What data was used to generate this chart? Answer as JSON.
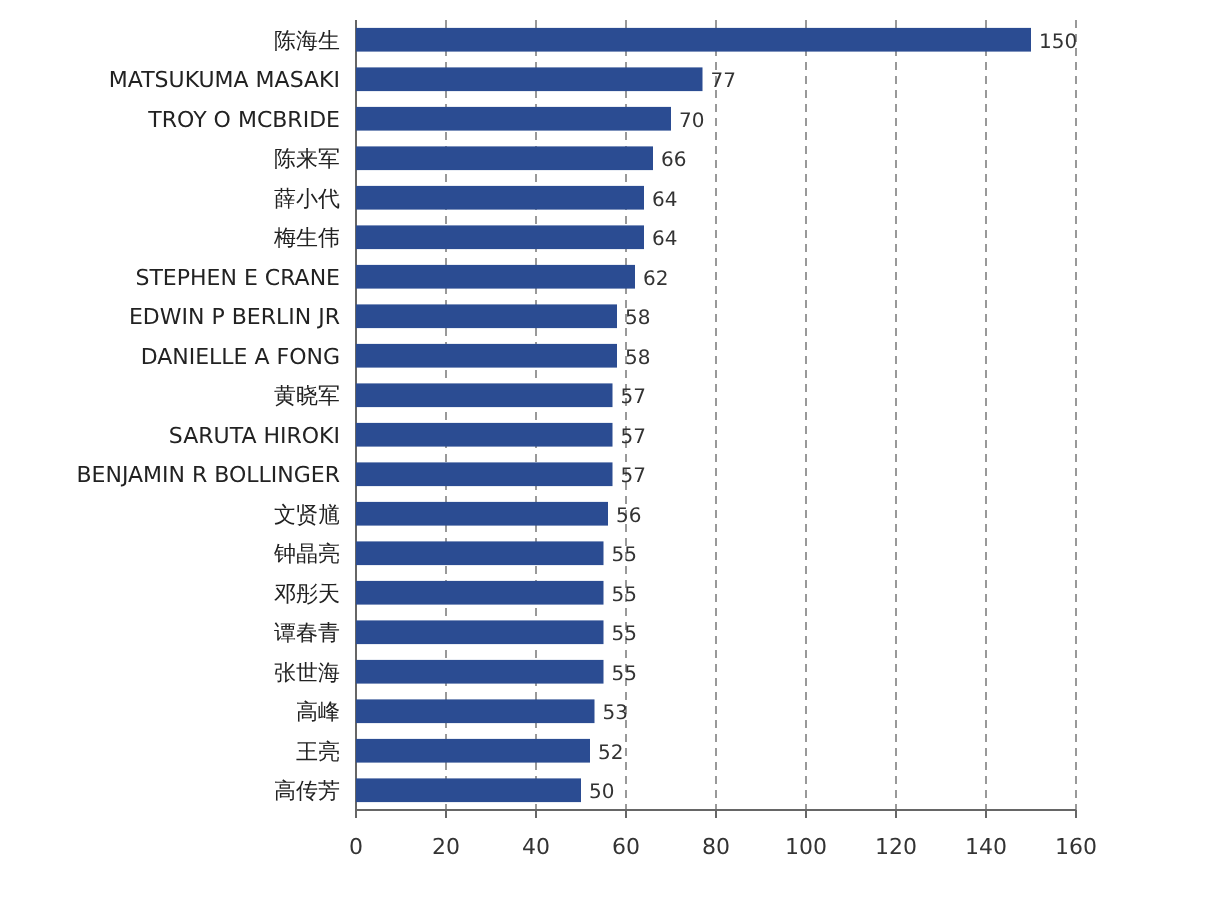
{
  "chart_data": {
    "type": "bar",
    "orientation": "horizontal",
    "categories": [
      "陈海生",
      "MATSUKUMA MASAKI",
      "TROY O MCBRIDE",
      "陈来军",
      "薛小代",
      "梅生伟",
      "STEPHEN E CRANE",
      "EDWIN P BERLIN JR",
      "DANIELLE A FONG",
      "黄晓军",
      "SARUTA HIROKI",
      "BENJAMIN R BOLLINGER",
      "文贤馗",
      "钟晶亮",
      "邓彤天",
      "谭春青",
      "张世海",
      "高峰",
      "王亮",
      "高传芳"
    ],
    "values": [
      150,
      77,
      70,
      66,
      64,
      64,
      62,
      58,
      58,
      57,
      57,
      57,
      56,
      55,
      55,
      55,
      55,
      53,
      52,
      50
    ],
    "color": "#2b4c92",
    "xlim": [
      0,
      160
    ],
    "xticks": [
      0,
      20,
      40,
      60,
      80,
      100,
      120,
      140,
      160
    ],
    "grid": "x",
    "data_labels": true
  }
}
